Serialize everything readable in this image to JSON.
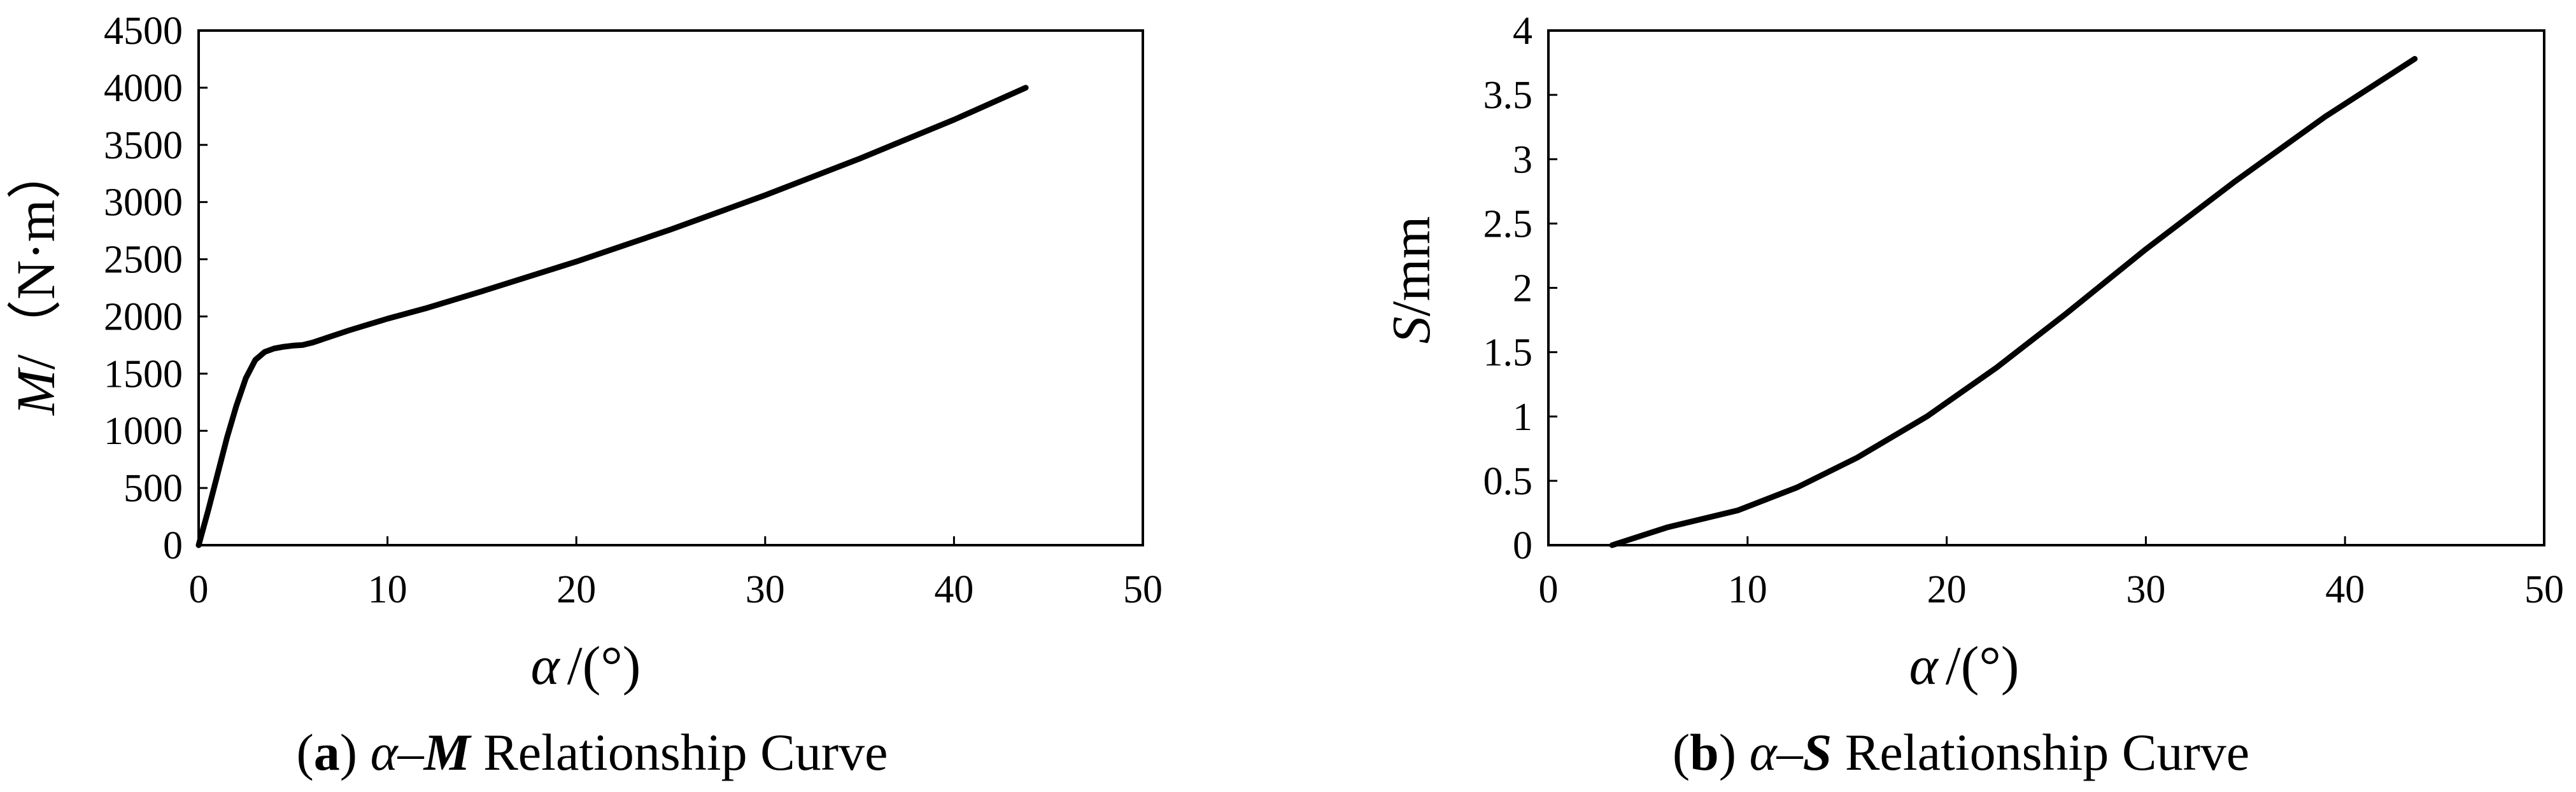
{
  "chart_data": [
    {
      "type": "line",
      "caption": {
        "label": "a",
        "text_before": "α–",
        "symbol": "M",
        "text_after": " Relationship Curve"
      },
      "xlabel": {
        "symbol": "α",
        "unit": "/(°)"
      },
      "ylabel": {
        "symbol": "M",
        "unit": "/（N·m）"
      },
      "xlim": [
        0,
        50
      ],
      "ylim": [
        0,
        4500
      ],
      "xticks": [
        0,
        10,
        20,
        30,
        40,
        50
      ],
      "yticks": [
        0,
        500,
        1000,
        1500,
        2000,
        2500,
        3000,
        3500,
        4000,
        4500
      ],
      "grid": false,
      "series": [
        {
          "x": [
            0,
            0.5,
            1,
            1.5,
            2,
            2.5,
            3,
            3.5,
            4,
            4.5,
            5,
            5.5,
            6,
            8,
            10,
            12,
            15,
            20,
            25,
            30,
            35,
            40,
            43.8
          ],
          "y": [
            0,
            300,
            620,
            940,
            1220,
            1460,
            1620,
            1690,
            1720,
            1735,
            1745,
            1750,
            1770,
            1880,
            1980,
            2070,
            2220,
            2480,
            2760,
            3060,
            3380,
            3720,
            4000
          ]
        }
      ]
    },
    {
      "type": "line",
      "caption": {
        "label": "b",
        "text_before": "α–",
        "symbol": "S",
        "text_after": " Relationship Curve"
      },
      "xlabel": {
        "symbol": "α",
        "unit": "/(°)"
      },
      "ylabel": {
        "symbol": "S",
        "unit": "/mm"
      },
      "xlim": [
        0,
        50
      ],
      "ylim": [
        0,
        4
      ],
      "xticks": [
        0,
        10,
        20,
        30,
        40,
        50
      ],
      "yticks": [
        0,
        0.5,
        1,
        1.5,
        2,
        2.5,
        3,
        3.5,
        4
      ],
      "ytick_labels": [
        "0",
        "0.5",
        "1",
        "1.5",
        "2",
        "2.5",
        "3",
        "3.5",
        "4"
      ],
      "grid": false,
      "series": [
        {
          "x": [
            3.2,
            6,
            9.5,
            12.5,
            15.5,
            19,
            22.5,
            26,
            30,
            34.5,
            39,
            43.5
          ],
          "y": [
            0,
            0.14,
            0.27,
            0.45,
            0.68,
            1.0,
            1.38,
            1.8,
            2.3,
            2.83,
            3.33,
            3.78
          ]
        }
      ]
    }
  ]
}
